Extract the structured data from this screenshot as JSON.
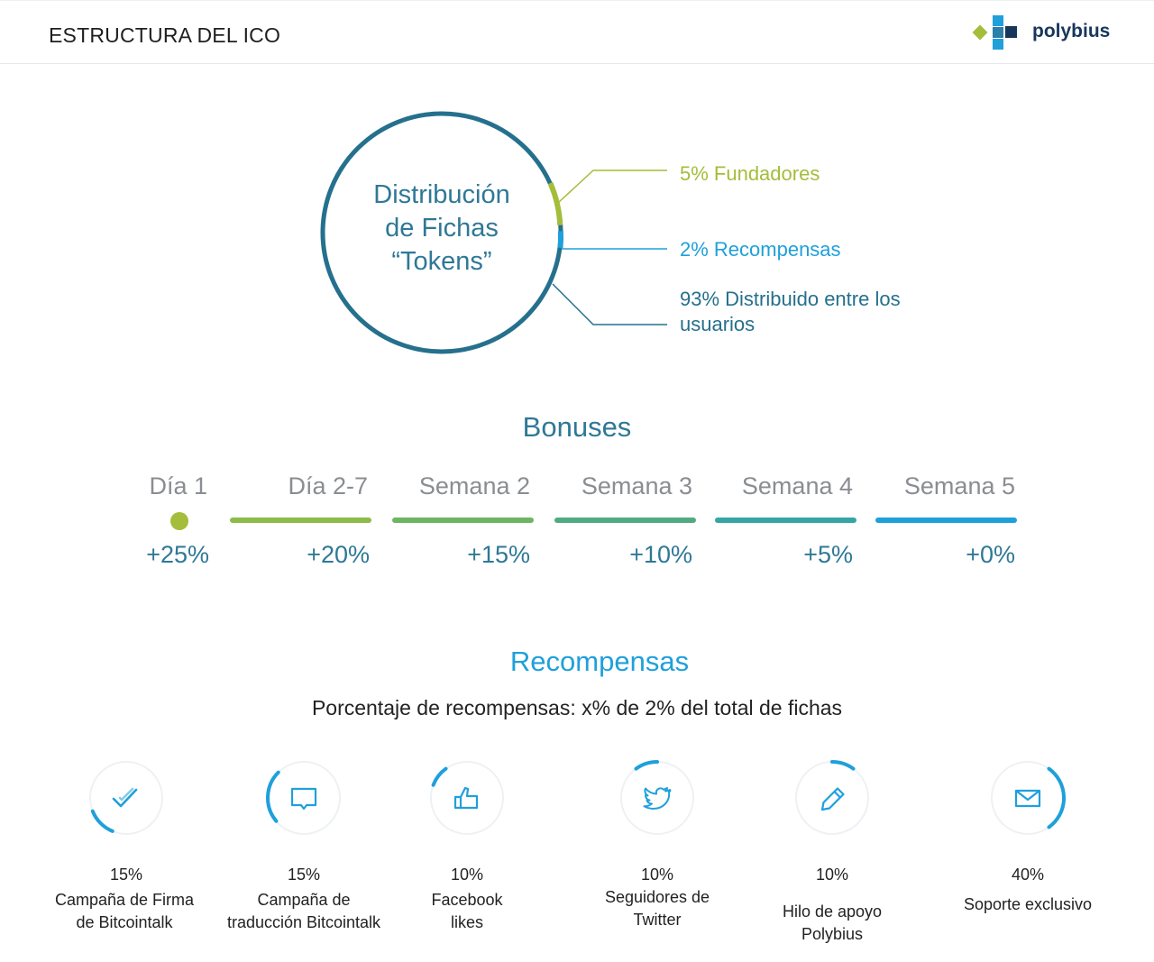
{
  "header": {
    "title": "ESTRUCTURA DEL ICO",
    "logo_text": "polybius",
    "logo_icon": "polybius-logo-icon"
  },
  "distribution": {
    "title_lines": [
      "Distribución",
      "de Fichas",
      "“Tokens”"
    ],
    "items": [
      {
        "label": "5% Fundadores",
        "percent": 5,
        "color": "#a4bd3a"
      },
      {
        "label": "2% Recompensas",
        "percent": 2,
        "color": "#1fa0db"
      },
      {
        "label_lines": [
          "93% Distribuido entre los",
          "usuarios"
        ],
        "percent": 93,
        "color": "#25708d"
      }
    ]
  },
  "bonuses": {
    "title": "Bonuses",
    "items": [
      {
        "period": "Día 1",
        "bonus": "+25%"
      },
      {
        "period": "Día 2-7",
        "bonus": "+20%"
      },
      {
        "period": "Semana 2",
        "bonus": "+15%"
      },
      {
        "period": "Semana 3",
        "bonus": "+10%"
      },
      {
        "period": "Semana 4",
        "bonus": "+5%"
      },
      {
        "period": "Semana 5",
        "bonus": "+0%"
      }
    ],
    "colors": [
      "#a4bd3a",
      "#8cbb4a",
      "#6eb464",
      "#52ab80",
      "#35a6a5",
      "#1fa0db"
    ]
  },
  "rewards": {
    "title": "Recompensas",
    "subtitle": "Porcentaje de recompensas: x% de 2% del total de fichas",
    "accent": "#1fa0db",
    "items": [
      {
        "icon": "checkmark-icon",
        "pct": "15%",
        "fraction": 0.15,
        "name_lines": [
          "Campaña de Firma",
          "de Bitcointalk"
        ]
      },
      {
        "icon": "chat-bubble-icon",
        "pct": "15%",
        "fraction": 0.15,
        "name_lines": [
          "Campaña de",
          "traducción Bitcointalk"
        ]
      },
      {
        "icon": "thumbs-up-icon",
        "pct": "10%",
        "fraction": 0.1,
        "name_lines": [
          "Facebook",
          "likes"
        ]
      },
      {
        "icon": "twitter-bird-icon",
        "pct": "10%",
        "fraction": 0.1,
        "name_lines": [
          "Seguidores de",
          "Twitter"
        ]
      },
      {
        "icon": "pencil-icon",
        "pct": "10%",
        "fraction": 0.1,
        "name_lines": [
          "Hilo de apoyo",
          "Polybius"
        ]
      },
      {
        "icon": "envelope-icon",
        "pct": "40%",
        "fraction": 0.4,
        "name_lines": [
          "Soporte exclusivo"
        ]
      }
    ]
  }
}
